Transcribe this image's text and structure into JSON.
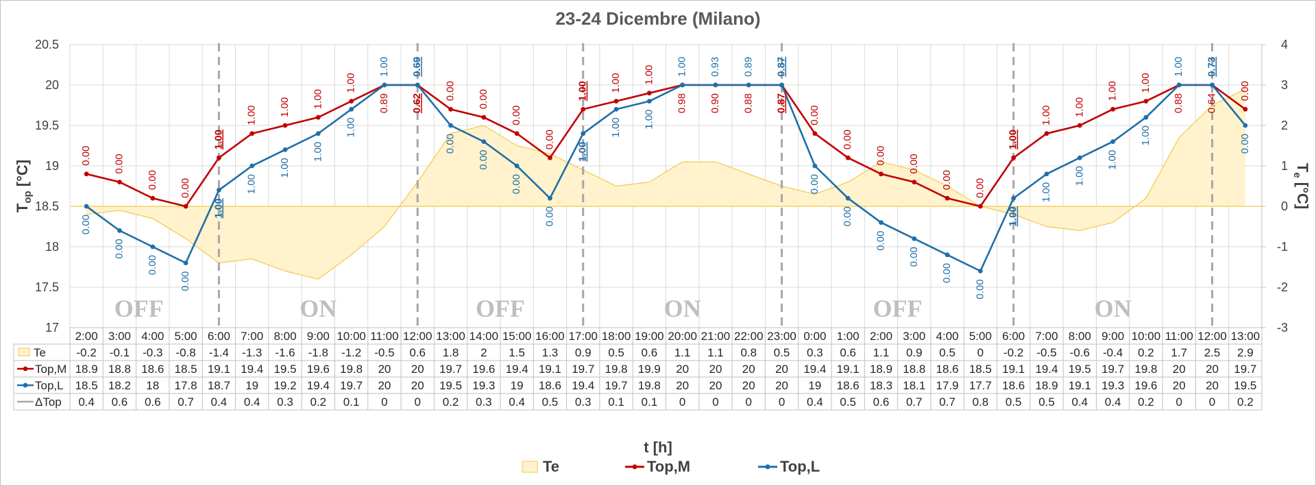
{
  "chart_data": {
    "type": "line",
    "title": "23-24 Dicembre (Milano)",
    "xlabel": "t [h]",
    "ylabel_left": "Top [°C]",
    "ylabel_right": "Te [°C]",
    "ylim_left": [
      17,
      20.5
    ],
    "ylim_right": [
      -3,
      4
    ],
    "left_ticks": [
      "17",
      "17.5",
      "18",
      "18.5",
      "19",
      "19.5",
      "20",
      "20.5"
    ],
    "right_ticks": [
      "-3",
      "-2",
      "-1",
      "0",
      "1",
      "2",
      "3",
      "4"
    ],
    "categories": [
      "2:00",
      "3:00",
      "4:00",
      "5:00",
      "6:00",
      "7:00",
      "8:00",
      "9:00",
      "10:00",
      "11:00",
      "12:00",
      "13:00",
      "14:00",
      "15:00",
      "16:00",
      "17:00",
      "18:00",
      "19:00",
      "20:00",
      "21:00",
      "22:00",
      "23:00",
      "0:00",
      "1:00",
      "2:00",
      "3:00",
      "4:00",
      "5:00",
      "6:00",
      "7:00",
      "8:00",
      "9:00",
      "10:00",
      "11:00",
      "12:00",
      "13:00"
    ],
    "series": [
      {
        "name": "Te",
        "kind": "area",
        "axis": "right",
        "color": "#ffe699",
        "values": [
          -0.2,
          -0.1,
          -0.3,
          -0.8,
          -1.4,
          -1.3,
          -1.6,
          -1.8,
          -1.2,
          -0.5,
          0.6,
          1.8,
          2,
          1.5,
          1.3,
          0.9,
          0.5,
          0.6,
          1.1,
          1.1,
          0.8,
          0.5,
          0.3,
          0.6,
          1.1,
          0.9,
          0.5,
          0,
          -0.2,
          -0.5,
          -0.6,
          -0.4,
          0.2,
          1.7,
          2.5,
          2.9
        ]
      },
      {
        "name": "Top,M",
        "kind": "line",
        "axis": "left",
        "color": "#c00000",
        "values": [
          18.9,
          18.8,
          18.6,
          18.5,
          19.1,
          19.4,
          19.5,
          19.6,
          19.8,
          20,
          20,
          19.7,
          19.6,
          19.4,
          19.1,
          19.7,
          19.8,
          19.9,
          20,
          20,
          20,
          20,
          19.4,
          19.1,
          18.9,
          18.8,
          18.6,
          18.5,
          19.1,
          19.4,
          19.5,
          19.7,
          19.8,
          20,
          20,
          19.7
        ]
      },
      {
        "name": "Top,L",
        "kind": "line",
        "axis": "left",
        "color": "#1f6fa8",
        "values": [
          18.5,
          18.2,
          18,
          17.8,
          18.7,
          19,
          19.2,
          19.4,
          19.7,
          20,
          20,
          19.5,
          19.3,
          19,
          18.6,
          19.4,
          19.7,
          19.8,
          20,
          20,
          20,
          20,
          19,
          18.6,
          18.3,
          18.1,
          17.9,
          17.7,
          18.6,
          18.9,
          19.1,
          19.3,
          19.6,
          20,
          20,
          19.5
        ]
      },
      {
        "name": "ΔTop",
        "kind": "table-only",
        "color": "#a6a6a6",
        "values": [
          0.4,
          0.6,
          0.6,
          0.7,
          0.4,
          0.4,
          0.3,
          0.2,
          0.1,
          0,
          0,
          0.2,
          0.3,
          0.4,
          0.5,
          0.3,
          0.1,
          0.1,
          0,
          0,
          0,
          0,
          0.4,
          0.5,
          0.6,
          0.7,
          0.7,
          0.8,
          0.5,
          0.5,
          0.4,
          0.4,
          0.2,
          0,
          0,
          0.2
        ]
      }
    ],
    "table_rows": {
      "Te": [
        "-0.2",
        "-0.1",
        "-0.3",
        "-0.8",
        "-1.4",
        "-1.3",
        "-1.6",
        "-1.8",
        "-1.2",
        "-0.5",
        "0.6",
        "1.8",
        "2",
        "1.5",
        "1.3",
        "0.9",
        "0.5",
        "0.6",
        "1.1",
        "1.1",
        "0.8",
        "0.5",
        "0.3",
        "0.6",
        "1.1",
        "0.9",
        "0.5",
        "0",
        "-0.2",
        "-0.5",
        "-0.6",
        "-0.4",
        "0.2",
        "1.7",
        "2.5",
        "2.9"
      ],
      "Top,M": [
        "18.9",
        "18.8",
        "18.6",
        "18.5",
        "19.1",
        "19.4",
        "19.5",
        "19.6",
        "19.8",
        "20",
        "20",
        "19.7",
        "19.6",
        "19.4",
        "19.1",
        "19.7",
        "19.8",
        "19.9",
        "20",
        "20",
        "20",
        "20",
        "19.4",
        "19.1",
        "18.9",
        "18.8",
        "18.6",
        "18.5",
        "19.1",
        "19.4",
        "19.5",
        "19.7",
        "19.8",
        "20",
        "20",
        "19.7"
      ],
      "Top,L": [
        "18.5",
        "18.2",
        "18",
        "17.8",
        "18.7",
        "19",
        "19.2",
        "19.4",
        "19.7",
        "20",
        "20",
        "19.5",
        "19.3",
        "19",
        "18.6",
        "19.4",
        "19.7",
        "19.8",
        "20",
        "20",
        "20",
        "20",
        "19",
        "18.6",
        "18.3",
        "18.1",
        "17.9",
        "17.7",
        "18.6",
        "18.9",
        "19.1",
        "19.3",
        "19.6",
        "20",
        "20",
        "19.5"
      ],
      "ΔTop": [
        "0.4",
        "0.6",
        "0.6",
        "0.7",
        "0.4",
        "0.4",
        "0.3",
        "0.2",
        "0.1",
        "0",
        "0",
        "0.2",
        "0.3",
        "0.4",
        "0.5",
        "0.3",
        "0.1",
        "0.1",
        "0",
        "0",
        "0",
        "0",
        "0.4",
        "0.5",
        "0.6",
        "0.7",
        "0.7",
        "0.8",
        "0.5",
        "0.5",
        "0.4",
        "0.4",
        "0.2",
        "0",
        "0",
        "0.2"
      ]
    },
    "table_row_labels": [
      "Te",
      "Top,M",
      "Top,L",
      "ΔTop"
    ],
    "labels_M": [
      "0.00",
      "0.00",
      "0.00",
      "0.00",
      "1.00",
      "1.00",
      "1.00",
      "1.00",
      "1.00",
      "0.89",
      "0.62",
      "0.00",
      "0.00",
      "0.00",
      "0.00",
      "1.00",
      "1.00",
      "1.00",
      "0.98",
      "0.90",
      "0.88",
      "0.87",
      "0.00",
      "0.00",
      "0.00",
      "0.00",
      "0.00",
      "0.00",
      "1.00",
      "1.00",
      "1.00",
      "1.00",
      "1.00",
      "0.88",
      "0.64",
      "0.00"
    ],
    "labels_L": [
      "0.00",
      "0.00",
      "0.00",
      "0.00",
      "1.00",
      "1.00",
      "1.00",
      "1.00",
      "1.00",
      "1.00",
      "0.69",
      "0.00",
      "0.00",
      "0.00",
      "0.00",
      "1.00",
      "1.00",
      "1.00",
      "1.00",
      "0.93",
      "0.89",
      "0.87",
      "0.00",
      "0.00",
      "0.00",
      "0.00",
      "0.00",
      "0.00",
      "1.00",
      "1.00",
      "1.00",
      "1.00",
      "1.00",
      "1.00",
      "0.73",
      "0.00"
    ],
    "separators_at": [
      4,
      10,
      15,
      21,
      28,
      34
    ],
    "separator_underlined_labels": [
      {
        "index": 4,
        "series": "Top,M"
      },
      {
        "index": 4,
        "series": "Top,L"
      },
      {
        "index": 10,
        "series": "Top,M"
      },
      {
        "index": 10,
        "series": "Top,L"
      },
      {
        "index": 15,
        "series": "Top,M"
      },
      {
        "index": 15,
        "series": "Top,L"
      },
      {
        "index": 21,
        "series": "Top,M"
      },
      {
        "index": 21,
        "series": "Top,L"
      },
      {
        "index": 28,
        "series": "Top,M"
      },
      {
        "index": 28,
        "series": "Top,L"
      },
      {
        "index": 34,
        "series": "Top,L"
      }
    ],
    "regions": [
      {
        "label": "OFF",
        "start": 0,
        "end": 4
      },
      {
        "label": "ON",
        "start": 4,
        "end": 10
      },
      {
        "label": "OFF",
        "start": 10,
        "end": 15
      },
      {
        "label": "ON",
        "start": 15,
        "end": 21
      },
      {
        "label": "OFF",
        "start": 21,
        "end": 28
      },
      {
        "label": "ON",
        "start": 28,
        "end": 34
      }
    ],
    "legend": [
      "Te",
      "Top,M",
      "Top,L"
    ],
    "legend_position": "bottom",
    "grid": true
  }
}
